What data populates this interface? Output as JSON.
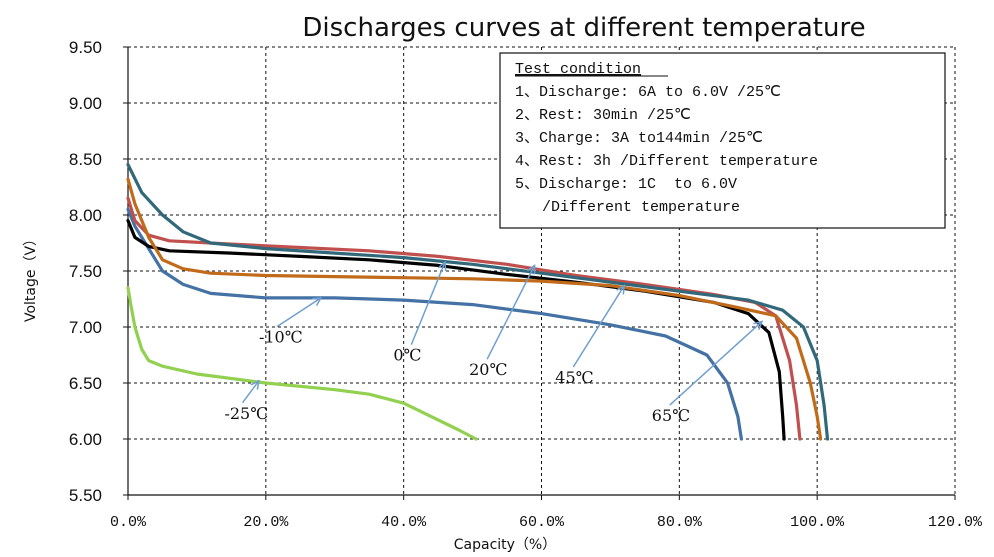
{
  "chart_data": {
    "type": "line",
    "title": "Discharges curves at different temperature",
    "xlabel": "Capacity（%）",
    "ylabel": "Voltage（V）",
    "xlim": [
      0,
      120
    ],
    "ylim": [
      5.5,
      9.5
    ],
    "x_ticks": [
      {
        "value": 0,
        "label": "0.0%"
      },
      {
        "value": 20,
        "label": "20.0%"
      },
      {
        "value": 40,
        "label": "40.0%"
      },
      {
        "value": 60,
        "label": "60.0%"
      },
      {
        "value": 80,
        "label": "80.0%"
      },
      {
        "value": 100,
        "label": "100.0%"
      },
      {
        "value": 120,
        "label": "120.0%"
      }
    ],
    "y_ticks": [
      {
        "value": 5.5,
        "label": "5.50"
      },
      {
        "value": 6.0,
        "label": "6.00"
      },
      {
        "value": 6.5,
        "label": "6.50"
      },
      {
        "value": 7.0,
        "label": "7.00"
      },
      {
        "value": 7.5,
        "label": "7.50"
      },
      {
        "value": 8.0,
        "label": "8.00"
      },
      {
        "value": 8.5,
        "label": "8.50"
      },
      {
        "value": 9.0,
        "label": "9.00"
      },
      {
        "value": 9.5,
        "label": "9.50"
      }
    ],
    "grid": "dashed",
    "series": [
      {
        "name": "-25℃",
        "color": "#92d050",
        "points": [
          [
            0,
            7.35
          ],
          [
            0.4,
            7.2
          ],
          [
            1,
            7.0
          ],
          [
            2,
            6.8
          ],
          [
            3,
            6.7
          ],
          [
            5,
            6.65
          ],
          [
            10,
            6.58
          ],
          [
            20,
            6.5
          ],
          [
            30,
            6.44
          ],
          [
            35,
            6.4
          ],
          [
            40,
            6.32
          ],
          [
            44,
            6.2
          ],
          [
            48,
            6.08
          ],
          [
            50.5,
            6.0
          ]
        ]
      },
      {
        "name": "-10℃",
        "color": "#4472a4",
        "points": [
          [
            0,
            8.05
          ],
          [
            1,
            7.9
          ],
          [
            3,
            7.7
          ],
          [
            5,
            7.5
          ],
          [
            8,
            7.38
          ],
          [
            12,
            7.3
          ],
          [
            20,
            7.26
          ],
          [
            30,
            7.26
          ],
          [
            40,
            7.24
          ],
          [
            50,
            7.2
          ],
          [
            60,
            7.12
          ],
          [
            70,
            7.02
          ],
          [
            78,
            6.92
          ],
          [
            84,
            6.75
          ],
          [
            87,
            6.5
          ],
          [
            88.5,
            6.2
          ],
          [
            89,
            6.0
          ]
        ]
      },
      {
        "name": "0℃",
        "color": "#000000",
        "points": [
          [
            0,
            7.95
          ],
          [
            1,
            7.8
          ],
          [
            3,
            7.72
          ],
          [
            6,
            7.68
          ],
          [
            15,
            7.66
          ],
          [
            25,
            7.63
          ],
          [
            35,
            7.6
          ],
          [
            45,
            7.55
          ],
          [
            55,
            7.47
          ],
          [
            65,
            7.4
          ],
          [
            75,
            7.32
          ],
          [
            85,
            7.22
          ],
          [
            90,
            7.12
          ],
          [
            93,
            6.95
          ],
          [
            94.5,
            6.6
          ],
          [
            95,
            6.2
          ],
          [
            95.2,
            6.0
          ]
        ]
      },
      {
        "name": "20℃",
        "color": "#c0504d",
        "points": [
          [
            0,
            8.15
          ],
          [
            1,
            7.95
          ],
          [
            3,
            7.82
          ],
          [
            6,
            7.77
          ],
          [
            15,
            7.74
          ],
          [
            25,
            7.71
          ],
          [
            35,
            7.68
          ],
          [
            45,
            7.63
          ],
          [
            55,
            7.56
          ],
          [
            65,
            7.46
          ],
          [
            75,
            7.38
          ],
          [
            85,
            7.29
          ],
          [
            91,
            7.22
          ],
          [
            94,
            7.1
          ],
          [
            96,
            6.7
          ],
          [
            97,
            6.3
          ],
          [
            97.5,
            6.0
          ]
        ]
      },
      {
        "name": "45℃",
        "color": "#c06a1a",
        "points": [
          [
            0,
            8.32
          ],
          [
            1,
            8.1
          ],
          [
            3,
            7.8
          ],
          [
            5,
            7.6
          ],
          [
            8,
            7.52
          ],
          [
            12,
            7.48
          ],
          [
            20,
            7.46
          ],
          [
            30,
            7.45
          ],
          [
            40,
            7.44
          ],
          [
            50,
            7.43
          ],
          [
            60,
            7.41
          ],
          [
            70,
            7.37
          ],
          [
            80,
            7.28
          ],
          [
            88,
            7.18
          ],
          [
            94,
            7.1
          ],
          [
            97,
            6.9
          ],
          [
            99,
            6.5
          ],
          [
            100,
            6.2
          ],
          [
            100.5,
            6.0
          ]
        ]
      },
      {
        "name": "65℃",
        "color": "#31697a",
        "points": [
          [
            0,
            8.45
          ],
          [
            2,
            8.2
          ],
          [
            5,
            8.0
          ],
          [
            8,
            7.85
          ],
          [
            12,
            7.75
          ],
          [
            20,
            7.7
          ],
          [
            30,
            7.66
          ],
          [
            40,
            7.62
          ],
          [
            50,
            7.56
          ],
          [
            60,
            7.48
          ],
          [
            70,
            7.4
          ],
          [
            80,
            7.32
          ],
          [
            90,
            7.24
          ],
          [
            95,
            7.15
          ],
          [
            98,
            7.0
          ],
          [
            100,
            6.7
          ],
          [
            101,
            6.3
          ],
          [
            101.5,
            6.0
          ]
        ]
      }
    ],
    "annotations": [
      {
        "text": "-25℃",
        "x": 14,
        "y": 6.18,
        "arrow_to": [
          19,
          6.52
        ]
      },
      {
        "text": "-10℃",
        "x": 19,
        "y": 6.86,
        "arrow_to": [
          28,
          7.26
        ]
      },
      {
        "text": "0℃",
        "x": 38.5,
        "y": 6.7,
        "arrow_to": [
          46,
          7.58
        ]
      },
      {
        "text": "20℃",
        "x": 49.5,
        "y": 6.57,
        "arrow_to": [
          59,
          7.55
        ]
      },
      {
        "text": "45℃",
        "x": 62,
        "y": 6.5,
        "arrow_to": [
          72,
          7.37
        ]
      },
      {
        "text": "65℃",
        "x": 76,
        "y": 6.16,
        "arrow_to": [
          92,
          7.05
        ]
      }
    ],
    "legend": {
      "title": "Test condition",
      "lines": [
        "1、Discharge: 6A to 6.0V /25℃",
        "2、Rest: 30min /25℃",
        "3、Charge: 3A to144min /25℃",
        "4、Rest: 3h /Different temperature",
        "5、Discharge: 1C  to 6.0V",
        "   /Different temperature"
      ]
    }
  }
}
